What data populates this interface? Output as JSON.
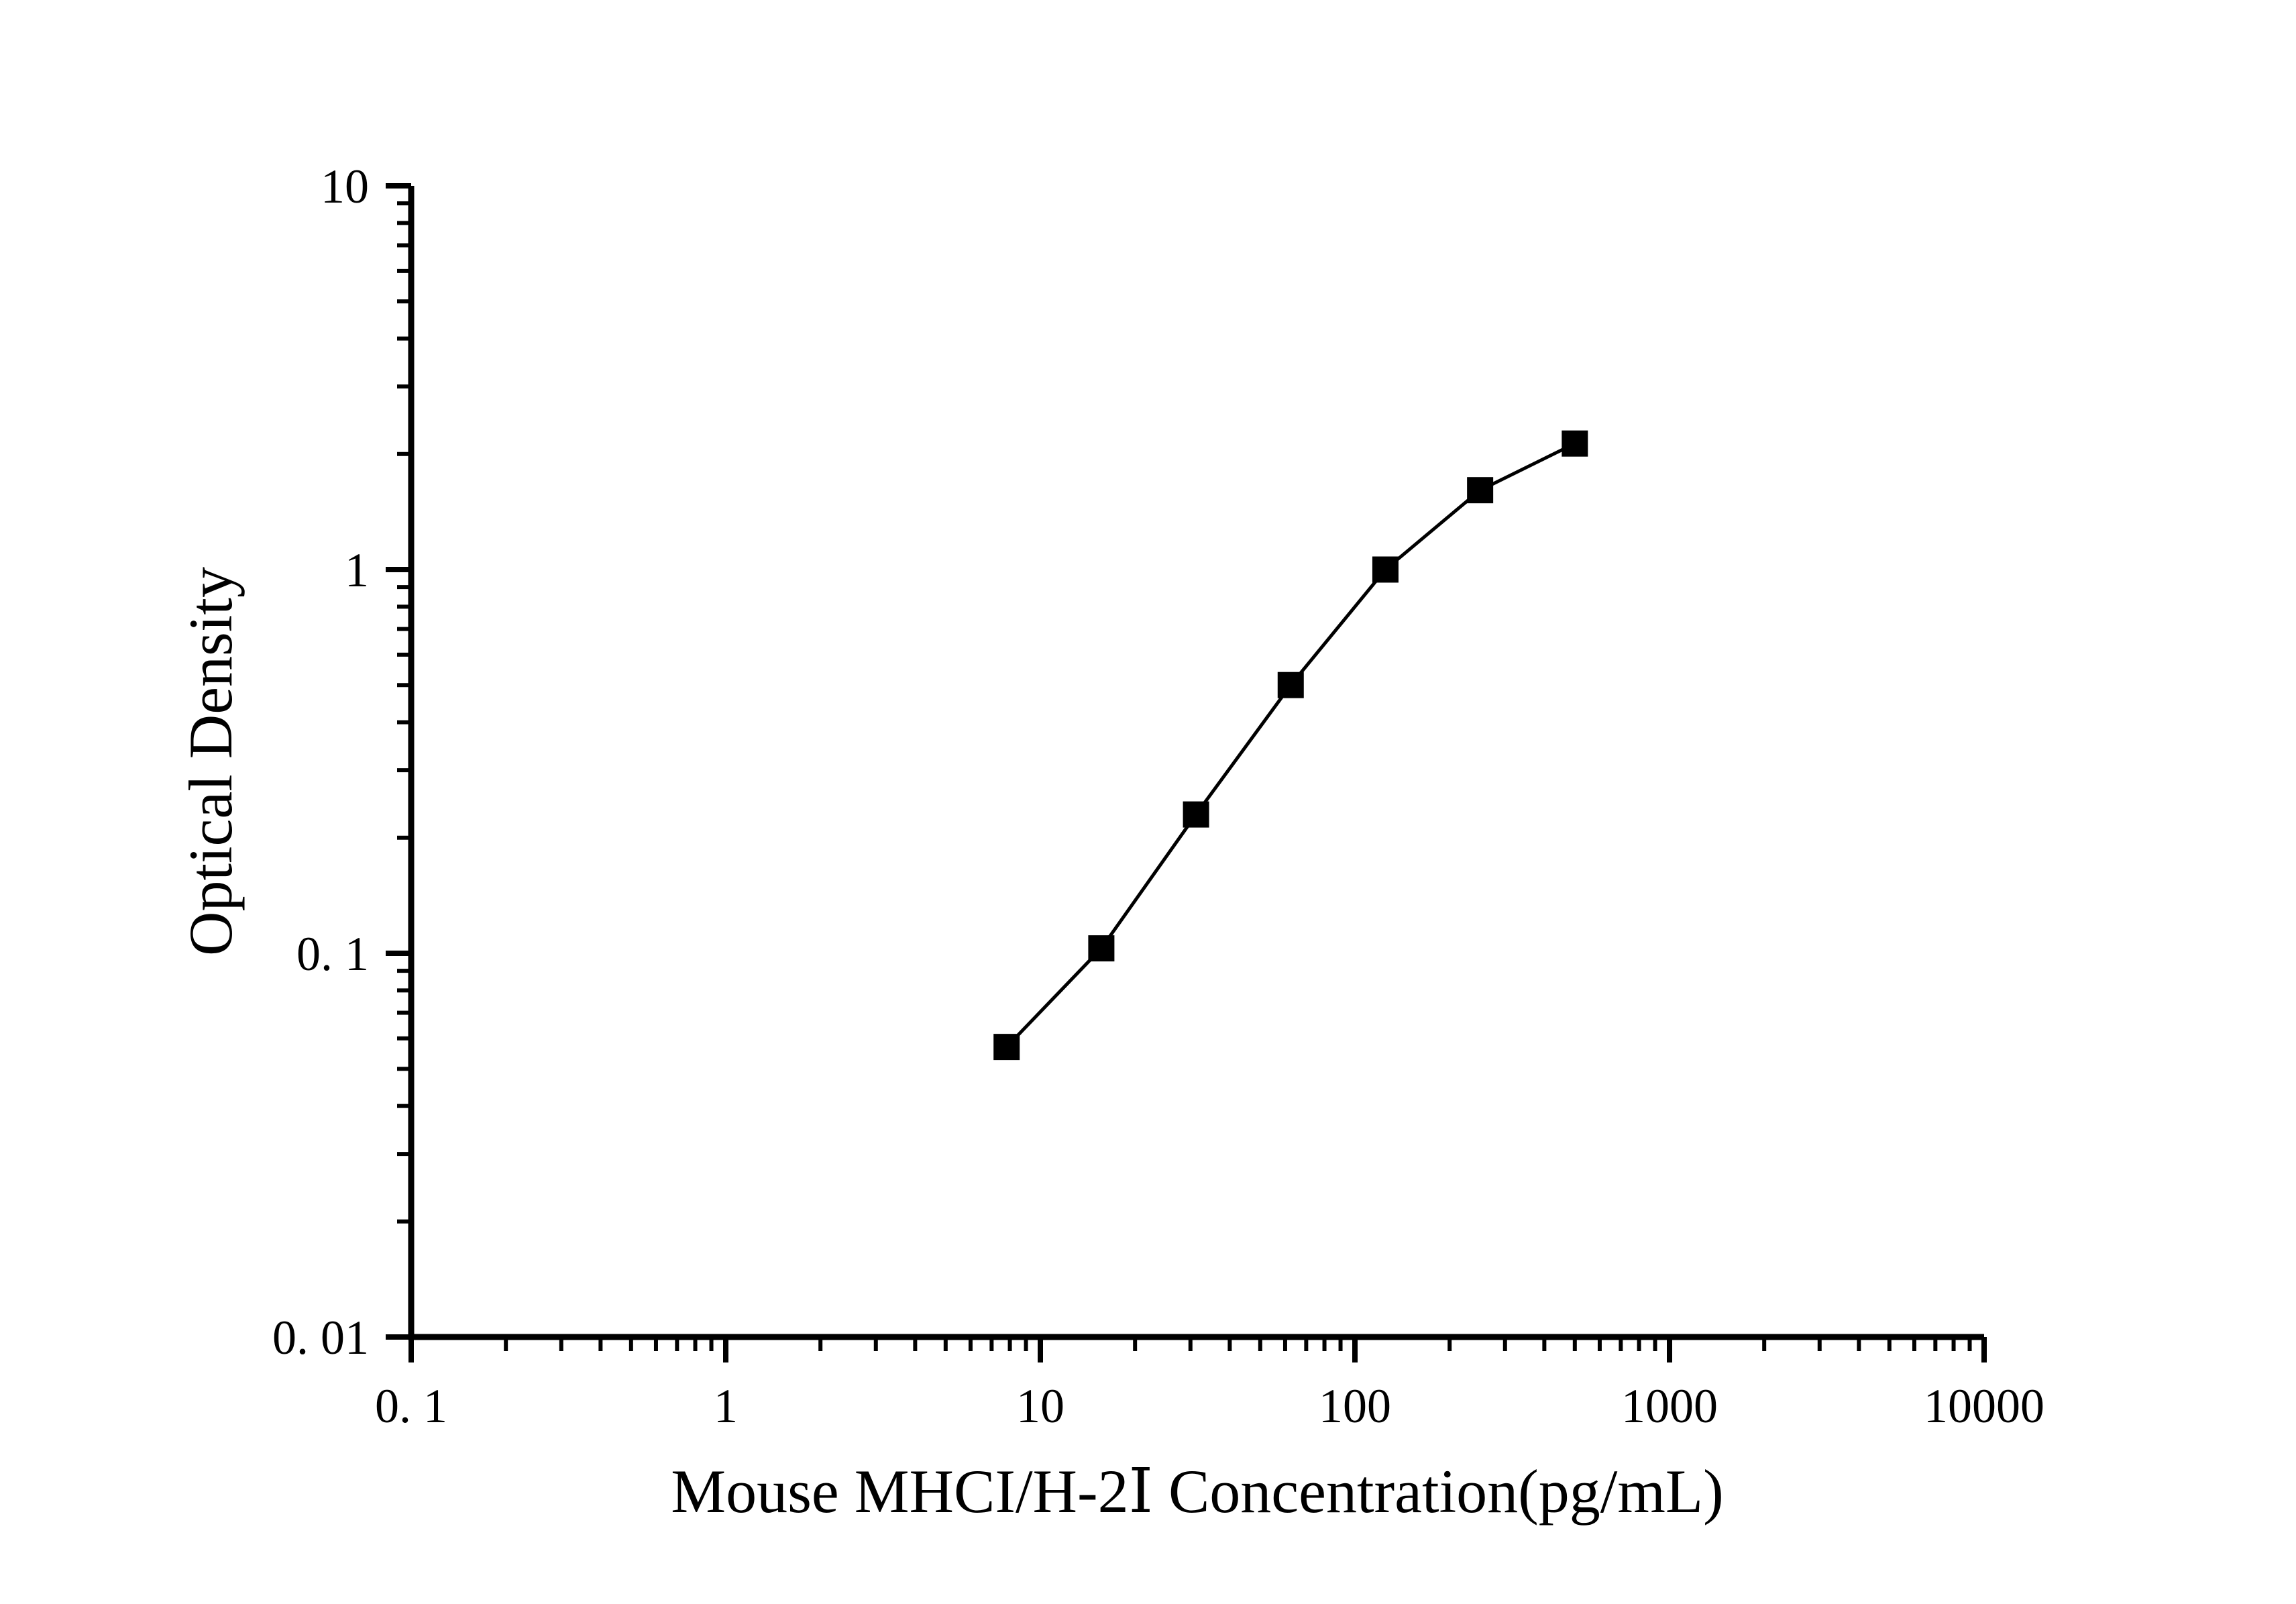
{
  "figure": {
    "background": "#ffffff",
    "foreground": "#000000"
  },
  "chart_data": {
    "type": "line",
    "xlabel": "Mouse MHCI/H-2Ⅰ Concentration(pg/mL)",
    "ylabel": "Optical Density",
    "x_scale": "log",
    "y_scale": "log",
    "xlim": [
      0.1,
      10000
    ],
    "ylim": [
      0.01,
      10
    ],
    "grid": false,
    "legend_position": "none",
    "marker": "filled-square",
    "line_color": "#000000",
    "marker_color": "#000000",
    "x": [
      7.8125,
      15.625,
      31.25,
      62.5,
      125,
      250,
      500
    ],
    "y": [
      0.057,
      0.103,
      0.23,
      0.5,
      1.0,
      1.61,
      2.13
    ],
    "x_ticks": [
      {
        "value": 0.1,
        "label": "0. 1"
      },
      {
        "value": 1,
        "label": "1"
      },
      {
        "value": 10,
        "label": "10"
      },
      {
        "value": 100,
        "label": "100"
      },
      {
        "value": 1000,
        "label": "1000"
      },
      {
        "value": 10000,
        "label": "10000"
      }
    ],
    "y_ticks": [
      {
        "value": 0.01,
        "label": "0. 01"
      },
      {
        "value": 0.1,
        "label": "0. 1"
      },
      {
        "value": 1,
        "label": "1"
      },
      {
        "value": 10,
        "label": "10"
      }
    ]
  }
}
